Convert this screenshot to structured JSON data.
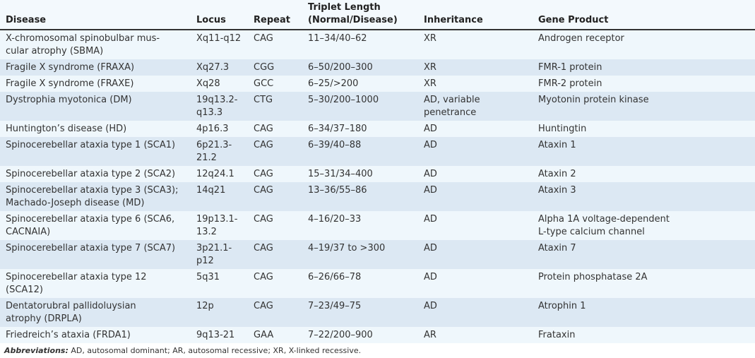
{
  "table": {
    "headers": [
      "Disease",
      "Locus",
      "Repeat",
      "Triplet Length\n(Normal/Disease)",
      "Inheritance",
      "Gene Product"
    ],
    "header_triplet_line1": "Triplet Length",
    "header_triplet_line2": "(Normal/Disease)",
    "rows": [
      [
        "X-chromosomal spinobulbar mus-\ncular atrophy (SBMA)",
        "Xq11-q12",
        "CAG",
        "11–34/40–62",
        "XR",
        "Androgen receptor"
      ],
      [
        "Fragile X syndrome (FRAXA)",
        "Xq27.3",
        "CGG",
        "6–50/200–300",
        "XR",
        "FMR-1 protein"
      ],
      [
        "Fragile X syndrome (FRAXE)",
        "Xq28",
        "GCC",
        "6–25/>200",
        "XR",
        "FMR-2 protein"
      ],
      [
        "Dystrophia myotonica (DM)",
        "19q13.2-q13.3",
        "CTG",
        "5–30/200–1000",
        "AD, variable penetrance",
        "Myotonin protein kinase"
      ],
      [
        "Huntington’s disease (HD)",
        "4p16.3",
        "CAG",
        "6–34/37–180",
        "AD",
        "Huntingtin"
      ],
      [
        "Spinocerebellar ataxia type 1 (SCA1)",
        "6p21.3-21.2",
        "CAG",
        "6–39/40–88",
        "AD",
        "Ataxin 1"
      ],
      [
        "Spinocerebellar ataxia type 2 (SCA2)",
        "12q24.1",
        "CAG",
        "15–31/34–400",
        "AD",
        "Ataxin 2"
      ],
      [
        "Spinocerebellar ataxia type 3 (SCA3);\nMachado-Joseph disease (MD)",
        "14q21",
        "CAG",
        "13–36/55–86",
        "AD",
        "Ataxin 3"
      ],
      [
        "Spinocerebellar ataxia type 6 (SCA6,\nCACNAIA)",
        "19p13.1-13.2",
        "CAG",
        "4–16/20–33",
        "AD",
        "Alpha 1A voltage-dependent\nL-type calcium channel"
      ],
      [
        "Spinocerebellar ataxia type 7 (SCA7)",
        "3p21.1-p12",
        "CAG",
        "4–19/37 to >300",
        "AD",
        "Ataxin 7"
      ],
      [
        "Spinocerebellar ataxia type 12\n(SCA12)",
        "5q31",
        "CAG",
        "6–26/66–78",
        "AD",
        "Protein phosphatase 2A"
      ],
      [
        "Dentatorubral pallidoluysian\natrophy (DRPLA)",
        "12p",
        "CAG",
        "7–23/49–75",
        "AD",
        "Atrophin 1"
      ],
      [
        "Friedreich’s ataxia (FRDA1)",
        "9q13-21",
        "GAA",
        "7–22/200–900",
        "AR",
        "Frataxin"
      ]
    ]
  },
  "footnote": {
    "label": "Abbreviations:",
    "text": " AD, autosomal dominant; AR, autosomal recessive; XR, X-linked recessive."
  }
}
